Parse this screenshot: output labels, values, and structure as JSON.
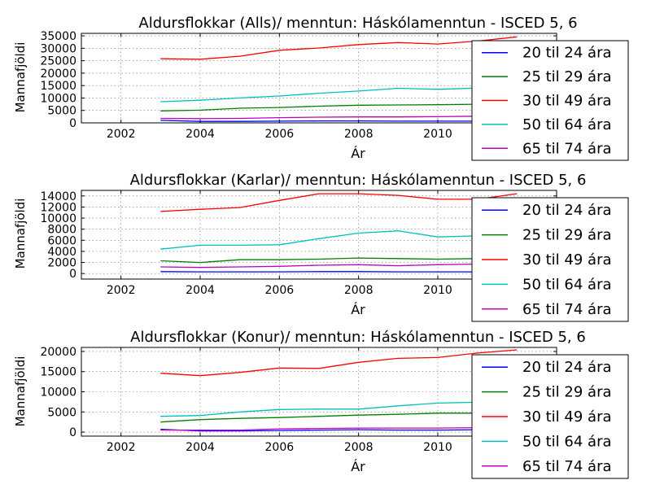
{
  "chart_data": [
    {
      "type": "line",
      "title": "Aldursflokkar (Alls)/ menntun: Háskólamenntun - ISCED 5, 6",
      "xlabel": "Ár",
      "ylabel": "Mannafjöldi",
      "xlim": [
        2001,
        2013
      ],
      "ylim": [
        0,
        36000
      ],
      "xticks": [
        2002,
        2004,
        2006,
        2008,
        2010
      ],
      "yticks": [
        0,
        5000,
        10000,
        15000,
        20000,
        25000,
        30000,
        35000
      ],
      "grid": true,
      "legend": "right",
      "x": [
        2003,
        2004,
        2005,
        2006,
        2007,
        2008,
        2009,
        2010,
        2011,
        2012
      ],
      "series": [
        {
          "name": "20 til 24 ára",
          "color": "#0000ff",
          "values": [
            1000,
            600,
            600,
            700,
            800,
            800,
            700,
            700,
            700,
            700
          ]
        },
        {
          "name": "25 til 29 ára",
          "color": "#008000",
          "values": [
            4800,
            5100,
            5900,
            6200,
            6700,
            7100,
            7200,
            7300,
            7500,
            7700
          ]
        },
        {
          "name": "30 til 49 ára",
          "color": "#ff0000",
          "values": [
            25800,
            25600,
            26800,
            29200,
            30100,
            31500,
            32300,
            31700,
            32900,
            34600
          ]
        },
        {
          "name": "50 til 64 ára",
          "color": "#00bfbf",
          "values": [
            8500,
            9100,
            10000,
            10800,
            11900,
            12800,
            13900,
            13500,
            14000,
            14500
          ]
        },
        {
          "name": "65 til 74 ára",
          "color": "#bf00bf",
          "values": [
            1800,
            1700,
            1800,
            2100,
            2300,
            2400,
            2400,
            2500,
            2700,
            2900
          ]
        }
      ]
    },
    {
      "type": "line",
      "title": "Aldursflokkar (Karlar)/ menntun: Háskólamenntun - ISCED 5, 6",
      "xlabel": "Ár",
      "ylabel": "Mannafjöldi",
      "xlim": [
        2001,
        2013
      ],
      "ylim": [
        -1000,
        15000
      ],
      "xticks": [
        2002,
        2004,
        2006,
        2008,
        2010
      ],
      "yticks": [
        0,
        2000,
        4000,
        6000,
        8000,
        10000,
        12000,
        14000
      ],
      "grid": true,
      "legend": "right",
      "x": [
        2003,
        2004,
        2005,
        2006,
        2007,
        2008,
        2009,
        2010,
        2011,
        2012
      ],
      "series": [
        {
          "name": "20 til 24 ára",
          "color": "#0000ff",
          "values": [
            350,
            300,
            300,
            300,
            350,
            350,
            300,
            300,
            300,
            300
          ]
        },
        {
          "name": "25 til 29 ára",
          "color": "#008000",
          "values": [
            2300,
            2000,
            2500,
            2500,
            2600,
            2800,
            2700,
            2600,
            2700,
            2800
          ]
        },
        {
          "name": "30 til 49 ára",
          "color": "#ff0000",
          "values": [
            11200,
            11600,
            11900,
            13200,
            14400,
            14400,
            14100,
            13400,
            13400,
            14400
          ]
        },
        {
          "name": "50 til 64 ára",
          "color": "#00bfbf",
          "values": [
            4400,
            5100,
            5100,
            5200,
            6300,
            7300,
            7700,
            6600,
            6800,
            7000
          ]
        },
        {
          "name": "65 til 74 ára",
          "color": "#bf00bf",
          "values": [
            1200,
            1100,
            1200,
            1300,
            1500,
            1600,
            1400,
            1600,
            1700,
            1800
          ]
        }
      ]
    },
    {
      "type": "line",
      "title": "Aldursflokkar (Konur)/ menntun: Háskólamenntun - ISCED 5, 6",
      "xlabel": "Ár",
      "ylabel": "Mannafjöldi",
      "xlim": [
        2001,
        2013
      ],
      "ylim": [
        -1000,
        21000
      ],
      "xticks": [
        2002,
        2004,
        2006,
        2008,
        2010
      ],
      "yticks": [
        0,
        5000,
        10000,
        15000,
        20000
      ],
      "grid": true,
      "legend": "right",
      "x": [
        2003,
        2004,
        2005,
        2006,
        2007,
        2008,
        2009,
        2010,
        2011,
        2012
      ],
      "series": [
        {
          "name": "20 til 24 ára",
          "color": "#0000ff",
          "values": [
            700,
            300,
            300,
            400,
            500,
            600,
            500,
            500,
            600,
            600
          ]
        },
        {
          "name": "25 til 29 ára",
          "color": "#008000",
          "values": [
            2500,
            3100,
            3400,
            3600,
            3900,
            4200,
            4400,
            4700,
            4700,
            4800
          ]
        },
        {
          "name": "30 til 49 ára",
          "color": "#ff0000",
          "values": [
            14600,
            14000,
            14800,
            15900,
            15800,
            17300,
            18300,
            18500,
            19600,
            20400
          ]
        },
        {
          "name": "50 til 64 ára",
          "color": "#00bfbf",
          "values": [
            3900,
            4100,
            5000,
            5600,
            5700,
            5700,
            6500,
            7200,
            7400,
            7500
          ]
        },
        {
          "name": "65 til 74 ára",
          "color": "#bf00bf",
          "values": [
            500,
            500,
            500,
            800,
            900,
            1000,
            1000,
            1000,
            1100,
            1200
          ]
        }
      ]
    }
  ]
}
